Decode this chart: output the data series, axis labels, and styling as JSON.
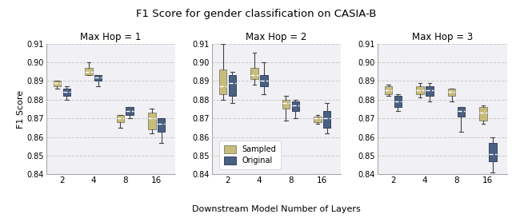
{
  "title": "F1 Score for gender classification on CASIA-B",
  "xlabel": "Downstream Model Number of Layers",
  "ylabel": "F1 Score",
  "subtitles": [
    "Max Hop = 1",
    "Max Hop = 2",
    "Max Hop = 3"
  ],
  "x_labels": [
    2,
    4,
    8,
    16
  ],
  "ylim": [
    0.84,
    0.91
  ],
  "yticks": [
    0.84,
    0.85,
    0.86,
    0.87,
    0.88,
    0.89,
    0.9,
    0.91
  ],
  "color_sampled": "#c8bc7a",
  "color_original": "#4a6082",
  "legend_labels": [
    "Sampled",
    "Original"
  ],
  "hop1": {
    "sampled": {
      "2": {
        "q1": 0.887,
        "median": 0.889,
        "q3": 0.89,
        "whislo": 0.886,
        "whishi": 0.89
      },
      "4": {
        "q1": 0.893,
        "median": 0.895,
        "q3": 0.897,
        "whislo": 0.893,
        "whishi": 0.9
      },
      "8": {
        "q1": 0.868,
        "median": 0.87,
        "q3": 0.872,
        "whislo": 0.865,
        "whishi": 0.872
      },
      "16": {
        "q1": 0.864,
        "median": 0.87,
        "q3": 0.873,
        "whislo": 0.862,
        "whishi": 0.875
      }
    },
    "original": {
      "2": {
        "q1": 0.882,
        "median": 0.884,
        "q3": 0.886,
        "whislo": 0.88,
        "whishi": 0.887
      },
      "4": {
        "q1": 0.89,
        "median": 0.892,
        "q3": 0.893,
        "whislo": 0.887,
        "whishi": 0.893
      },
      "8": {
        "q1": 0.872,
        "median": 0.874,
        "q3": 0.876,
        "whislo": 0.87,
        "whishi": 0.876
      },
      "16": {
        "q1": 0.863,
        "median": 0.867,
        "q3": 0.87,
        "whislo": 0.857,
        "whishi": 0.87
      }
    }
  },
  "hop2": {
    "sampled": {
      "2": {
        "q1": 0.883,
        "median": 0.887,
        "q3": 0.896,
        "whislo": 0.88,
        "whishi": 0.91
      },
      "4": {
        "q1": 0.891,
        "median": 0.893,
        "q3": 0.897,
        "whislo": 0.888,
        "whishi": 0.905
      },
      "8": {
        "q1": 0.875,
        "median": 0.878,
        "q3": 0.88,
        "whislo": 0.869,
        "whishi": 0.882
      },
      "16": {
        "q1": 0.868,
        "median": 0.87,
        "q3": 0.871,
        "whislo": 0.867,
        "whishi": 0.872
      }
    },
    "original": {
      "2": {
        "q1": 0.882,
        "median": 0.889,
        "q3": 0.893,
        "whislo": 0.878,
        "whishi": 0.895
      },
      "4": {
        "q1": 0.887,
        "median": 0.89,
        "q3": 0.893,
        "whislo": 0.883,
        "whishi": 0.9
      },
      "8": {
        "q1": 0.874,
        "median": 0.877,
        "q3": 0.879,
        "whislo": 0.87,
        "whishi": 0.88
      },
      "16": {
        "q1": 0.865,
        "median": 0.87,
        "q3": 0.874,
        "whislo": 0.862,
        "whishi": 0.878
      }
    }
  },
  "hop3": {
    "sampled": {
      "2": {
        "q1": 0.883,
        "median": 0.885,
        "q3": 0.887,
        "whislo": 0.882,
        "whishi": 0.888
      },
      "4": {
        "q1": 0.883,
        "median": 0.885,
        "q3": 0.887,
        "whislo": 0.881,
        "whishi": 0.889
      },
      "8": {
        "q1": 0.882,
        "median": 0.884,
        "q3": 0.886,
        "whislo": 0.879,
        "whishi": 0.886
      },
      "16": {
        "q1": 0.869,
        "median": 0.873,
        "q3": 0.876,
        "whislo": 0.867,
        "whishi": 0.877
      }
    },
    "original": {
      "2": {
        "q1": 0.876,
        "median": 0.879,
        "q3": 0.882,
        "whislo": 0.874,
        "whishi": 0.883
      },
      "4": {
        "q1": 0.882,
        "median": 0.885,
        "q3": 0.887,
        "whislo": 0.879,
        "whishi": 0.889
      },
      "8": {
        "q1": 0.871,
        "median": 0.874,
        "q3": 0.876,
        "whislo": 0.863,
        "whishi": 0.876
      },
      "16": {
        "q1": 0.847,
        "median": 0.851,
        "q3": 0.857,
        "whislo": 0.841,
        "whishi": 0.86
      }
    }
  }
}
